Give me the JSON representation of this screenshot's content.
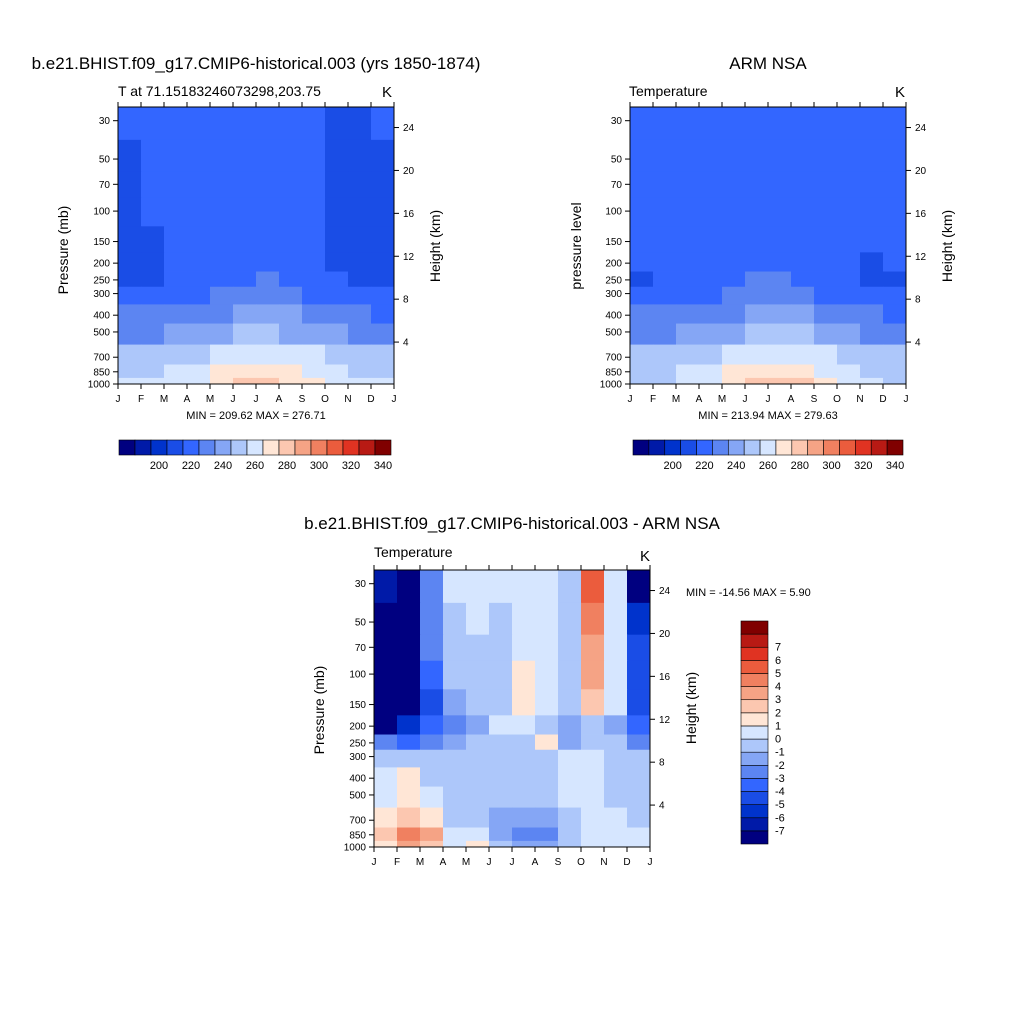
{
  "figure": {
    "panels": [
      {
        "id": "model",
        "title": "b.e21.BHIST.f09_g17.CMIP6-historical.003 (yrs 1850-1874)",
        "subtitle": "T at 71.15183246073298,203.75",
        "units": "K",
        "ylabel": "Pressure (mb)",
        "ylabel_right": "Height (km)",
        "stats": "MIN = 209.62 MAX = 276.71"
      },
      {
        "id": "obs",
        "title": "ARM NSA",
        "subtitle": "Temperature",
        "units": "K",
        "ylabel": "pressure level",
        "ylabel_right": "Height (km)",
        "stats": "MIN = 213.94 MAX = 279.63"
      },
      {
        "id": "diff",
        "title": "b.e21.BHIST.f09_g17.CMIP6-historical.003 - ARM NSA",
        "subtitle": "Temperature",
        "units": "K",
        "ylabel": "Pressure (mb)",
        "ylabel_right": "Height (km)",
        "stats": "MIN = -14.56 MAX =   5.90"
      }
    ]
  },
  "chart_data": [
    {
      "type": "heatmap",
      "panel": "model",
      "title": "T at 71.15183246073298,203.75",
      "xlabel": "",
      "ylabel": "Pressure (mb)",
      "ylabel_right": "Height (km)",
      "x_ticks": [
        "J",
        "F",
        "M",
        "A",
        "M",
        "J",
        "J",
        "A",
        "S",
        "O",
        "N",
        "D",
        "J"
      ],
      "y_ticks": [
        30,
        50,
        70,
        100,
        150,
        200,
        250,
        300,
        400,
        500,
        700,
        850,
        1000
      ],
      "y_ticks_right": [
        24,
        20,
        16,
        12,
        8,
        4
      ],
      "ylim": [
        1000,
        25
      ],
      "y_scale": "log",
      "x": [
        0.5,
        1.5,
        2.5,
        3.5,
        4.5,
        5.5,
        6.5,
        7.5,
        8.5,
        9.5,
        10.5,
        11.5
      ],
      "y": [
        30,
        50,
        70,
        100,
        150,
        200,
        250,
        300,
        400,
        500,
        700,
        850,
        1000
      ],
      "values": [
        [
          216,
          218,
          218,
          217,
          219,
          222,
          223,
          221,
          217,
          214,
          214,
          215
        ],
        [
          214,
          217,
          218,
          218,
          219,
          221,
          221,
          220,
          216,
          214,
          213,
          214
        ],
        [
          213,
          216,
          218,
          218,
          219,
          220,
          220,
          219,
          216,
          214,
          213,
          213
        ],
        [
          212,
          215,
          217,
          218,
          219,
          219,
          219,
          218,
          216,
          213,
          212,
          212
        ],
        [
          212,
          214,
          216,
          217,
          218,
          219,
          219,
          218,
          215,
          213,
          211,
          211
        ],
        [
          211,
          213,
          216,
          217,
          219,
          221,
          221,
          219,
          216,
          213,
          211,
          210
        ],
        [
          213,
          214,
          217,
          219,
          222,
          224,
          225,
          223,
          219,
          215,
          213,
          212
        ],
        [
          216,
          217,
          220,
          222,
          226,
          229,
          229,
          227,
          223,
          219,
          216,
          215
        ],
        [
          225,
          226,
          229,
          231,
          234,
          237,
          237,
          235,
          231,
          228,
          225,
          224
        ],
        [
          233,
          234,
          236,
          239,
          242,
          245,
          246,
          244,
          240,
          236,
          233,
          232
        ],
        [
          246,
          247,
          249,
          252,
          256,
          260,
          261,
          259,
          255,
          251,
          247,
          246
        ],
        [
          252,
          253,
          256,
          260,
          265,
          270,
          271,
          268,
          263,
          257,
          253,
          252
        ],
        [
          256,
          257,
          260,
          264,
          270,
          275,
          276,
          273,
          267,
          261,
          257,
          256
        ]
      ],
      "colorbar": {
        "orientation": "horizontal",
        "labels": [
          200,
          220,
          240,
          260,
          280,
          300,
          320,
          340
        ],
        "colors": [
          "#000080",
          "#001aa8",
          "#0033cc",
          "#1a4de6",
          "#3366ff",
          "#5c85f2",
          "#85a6f5",
          "#adc7fa",
          "#d6e6ff",
          "#ffe6d6",
          "#fcc7b0",
          "#f5a385",
          "#f08060",
          "#eb5c3d",
          "#e03322",
          "#b81a14",
          "#800000"
        ]
      },
      "min": 209.62,
      "max": 276.71
    },
    {
      "type": "heatmap",
      "panel": "obs",
      "title": "Temperature",
      "xlabel": "",
      "ylabel": "pressure level",
      "ylabel_right": "Height (km)",
      "x_ticks": [
        "J",
        "F",
        "M",
        "A",
        "M",
        "J",
        "J",
        "A",
        "S",
        "O",
        "N",
        "D",
        "J"
      ],
      "y_ticks": [
        30,
        50,
        70,
        100,
        150,
        200,
        250,
        300,
        400,
        500,
        700,
        850,
        1000
      ],
      "y_ticks_right": [
        24,
        20,
        16,
        12,
        8,
        4
      ],
      "ylim": [
        1000,
        25
      ],
      "y_scale": "log",
      "x": [
        0.5,
        1.5,
        2.5,
        3.5,
        4.5,
        5.5,
        6.5,
        7.5,
        8.5,
        9.5,
        10.5,
        11.5
      ],
      "y": [
        30,
        50,
        70,
        100,
        150,
        200,
        250,
        300,
        400,
        500,
        700,
        850,
        1000
      ],
      "values": [
        [
          222,
          224,
          223,
          222,
          222,
          222,
          222,
          221,
          219,
          218,
          219,
          221
        ],
        [
          221,
          223,
          223,
          222,
          222,
          222,
          222,
          221,
          219,
          217,
          218,
          220
        ],
        [
          220,
          222,
          222,
          222,
          222,
          222,
          222,
          221,
          219,
          217,
          217,
          219
        ],
        [
          219,
          221,
          222,
          222,
          222,
          222,
          222,
          221,
          219,
          217,
          216,
          218
        ],
        [
          218,
          220,
          221,
          221,
          221,
          221,
          221,
          220,
          218,
          216,
          215,
          217
        ],
        [
          216,
          218,
          220,
          221,
          221,
          222,
          222,
          221,
          219,
          216,
          214,
          215
        ],
        [
          214,
          216,
          219,
          221,
          223,
          225,
          225,
          224,
          221,
          217,
          214,
          214
        ],
        [
          215,
          217,
          220,
          222,
          226,
          229,
          230,
          228,
          224,
          219,
          216,
          215
        ],
        [
          225,
          226,
          229,
          231,
          234,
          237,
          238,
          236,
          232,
          228,
          225,
          224
        ],
        [
          233,
          234,
          237,
          239,
          243,
          246,
          247,
          245,
          241,
          237,
          234,
          233
        ],
        [
          246,
          247,
          250,
          253,
          257,
          261,
          262,
          260,
          256,
          252,
          248,
          247
        ],
        [
          251,
          252,
          256,
          261,
          266,
          271,
          272,
          269,
          264,
          258,
          253,
          251
        ],
        [
          253,
          254,
          258,
          264,
          271,
          277,
          279,
          275,
          268,
          261,
          255,
          253
        ]
      ],
      "colorbar": {
        "orientation": "horizontal",
        "labels": [
          200,
          220,
          240,
          260,
          280,
          300,
          320,
          340
        ],
        "colors": [
          "#000080",
          "#001aa8",
          "#0033cc",
          "#1a4de6",
          "#3366ff",
          "#5c85f2",
          "#85a6f5",
          "#adc7fa",
          "#d6e6ff",
          "#ffe6d6",
          "#fcc7b0",
          "#f5a385",
          "#f08060",
          "#eb5c3d",
          "#e03322",
          "#b81a14",
          "#800000"
        ]
      },
      "min": 213.94,
      "max": 279.63
    },
    {
      "type": "heatmap",
      "panel": "diff",
      "title": "Temperature",
      "xlabel": "",
      "ylabel": "Pressure (mb)",
      "ylabel_right": "Height (km)",
      "x_ticks": [
        "J",
        "F",
        "M",
        "A",
        "M",
        "J",
        "J",
        "A",
        "S",
        "O",
        "N",
        "D",
        "J"
      ],
      "y_ticks": [
        30,
        50,
        70,
        100,
        150,
        200,
        250,
        300,
        400,
        500,
        700,
        850,
        1000
      ],
      "y_ticks_right": [
        24,
        20,
        16,
        12,
        8,
        4
      ],
      "ylim": [
        1000,
        25
      ],
      "y_scale": "log",
      "x": [
        0.5,
        1.5,
        2.5,
        3.5,
        4.5,
        5.5,
        6.5,
        7.5,
        8.5,
        9.5,
        10.5,
        11.5
      ],
      "y": [
        30,
        50,
        70,
        100,
        150,
        200,
        250,
        300,
        400,
        500,
        700,
        850,
        1000
      ],
      "values": [
        [
          -7,
          -8,
          -3,
          0.5,
          0.5,
          0.5,
          0.5,
          0.5,
          -0.5,
          5,
          0.5,
          -8
        ],
        [
          -8,
          -9,
          -3,
          -0.5,
          0.5,
          -0.5,
          0.5,
          0.5,
          -0.5,
          4,
          0.5,
          -6
        ],
        [
          -8,
          -10,
          -3,
          -1,
          -0.5,
          -0.5,
          0.5,
          0.5,
          -0.5,
          3,
          0.5,
          -5
        ],
        [
          -9,
          -10,
          -4,
          -1,
          -0.5,
          -0.5,
          1.5,
          0.5,
          -0.5,
          3,
          0.5,
          -5
        ],
        [
          -10,
          -10,
          -5,
          -2,
          -1,
          -0.5,
          1,
          0.5,
          -0.5,
          2,
          0.5,
          -5
        ],
        [
          -9,
          -6,
          -4,
          -2.5,
          -1.5,
          0.5,
          0.5,
          -0.5,
          -2,
          -1,
          -1.5,
          -4
        ],
        [
          -3,
          -4,
          -3,
          -2,
          -1,
          -0.5,
          -0.5,
          1,
          -1.5,
          -1,
          -1,
          -2.5
        ],
        [
          -1,
          -1,
          -1,
          -0.5,
          -0.5,
          -0.5,
          -0.5,
          -0.5,
          0.5,
          0.5,
          -0.5,
          -1
        ],
        [
          0.5,
          1,
          -0.5,
          -0.5,
          -0.5,
          -1,
          -1,
          -1,
          0.5,
          0.5,
          -0.5,
          -0.5
        ],
        [
          0.5,
          1,
          0.5,
          -0.5,
          -0.5,
          -1,
          -1,
          -1,
          0.5,
          0.5,
          -0.5,
          -0.5
        ],
        [
          1,
          2,
          1.5,
          -0.5,
          -0.5,
          -1.5,
          -2,
          -2,
          -0.5,
          0.5,
          0.5,
          -0.5
        ],
        [
          2.5,
          4,
          3,
          0.5,
          0.5,
          -2,
          -3,
          -3,
          -1,
          0.5,
          0.5,
          0.5
        ],
        [
          1.5,
          3,
          2,
          0.5,
          1,
          -1,
          -2,
          -2,
          -0.5,
          0.5,
          0.5,
          0.5
        ]
      ],
      "colorbar": {
        "orientation": "vertical",
        "labels": [
          7,
          6,
          5,
          4,
          3,
          2,
          1,
          0,
          -1,
          -2,
          -3,
          -4,
          -5,
          -6,
          -7
        ],
        "colors": [
          "#000080",
          "#001aa8",
          "#0033cc",
          "#1a4de6",
          "#3366ff",
          "#5c85f2",
          "#85a6f5",
          "#adc7fa",
          "#d6e6ff",
          "#ffe6d6",
          "#fcc7b0",
          "#f5a385",
          "#f08060",
          "#eb5c3d",
          "#e03322",
          "#b81a14",
          "#800000"
        ]
      },
      "min": -14.56,
      "max": 5.9
    }
  ]
}
